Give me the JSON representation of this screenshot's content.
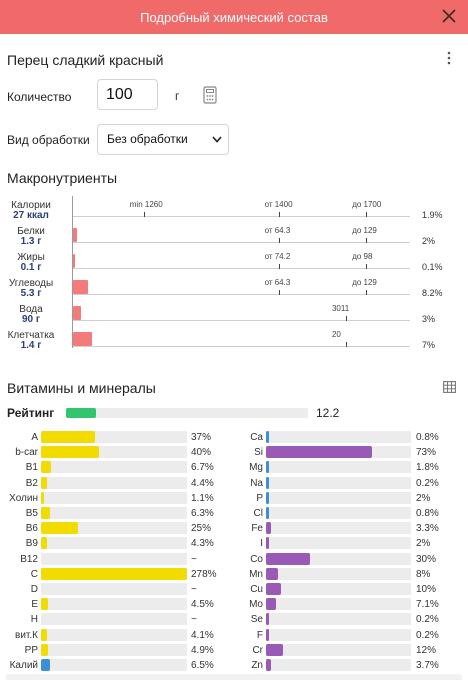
{
  "header": {
    "title": "Подробный химический состав"
  },
  "product": {
    "title": "Перец сладкий красный"
  },
  "quantity": {
    "label": "Количество",
    "value": "100",
    "unit": "г"
  },
  "processing": {
    "label": "Вид обработки",
    "selected": "Без обработки"
  },
  "macros": {
    "title": "Макронутриенты",
    "items": [
      {
        "name": "Калории",
        "amount": "27 ккал",
        "bar_pct": 0,
        "percent": "1.9%",
        "marks": [
          {
            "text": "min 1260",
            "tick_pct": 21
          },
          {
            "text": "от 1400",
            "tick_pct": 61
          },
          {
            "text": "до 1700",
            "tick_pct": 87
          }
        ]
      },
      {
        "name": "Белки",
        "amount": "1.3 г",
        "bar_pct": 1.2,
        "percent": "2%",
        "marks": [
          {
            "text": "от 64.3",
            "tick_pct": 61
          },
          {
            "text": "до 129",
            "tick_pct": 87
          }
        ]
      },
      {
        "name": "Жиры",
        "amount": "0.1 г",
        "bar_pct": 0.1,
        "percent": "0.1%",
        "marks": [
          {
            "text": "от 74.2",
            "tick_pct": 61
          },
          {
            "text": "до 98",
            "tick_pct": 87
          }
        ]
      },
      {
        "name": "Углеводы",
        "amount": "5.3 г",
        "bar_pct": 4.5,
        "percent": "8.2%",
        "marks": [
          {
            "text": "от 64.3",
            "tick_pct": 61
          },
          {
            "text": "до 129",
            "tick_pct": 87
          }
        ]
      },
      {
        "name": "Вода",
        "amount": "90 г",
        "bar_pct": 2.4,
        "percent": "3%",
        "marks": [
          {
            "text": "3011",
            "tick_pct": 81
          }
        ]
      },
      {
        "name": "Клетчатка",
        "amount": "1.4 г",
        "bar_pct": 5.5,
        "percent": "7%",
        "marks": [
          {
            "text": "20",
            "tick_pct": 81
          }
        ]
      }
    ]
  },
  "vitamins": {
    "title": "Витамины и минералы",
    "rating_label": "Рейтинг",
    "rating_value": "12.2",
    "rating_fill_pct": 12.2,
    "colors": {
      "vitamin": "#f2dc00",
      "mineral": "#9b59b6",
      "electrolyte": "#3b8fd6"
    },
    "left": [
      {
        "name": "A",
        "fill_pct": 37,
        "percent": "37%",
        "kind": "vitamin"
      },
      {
        "name": "b-car",
        "fill_pct": 40,
        "percent": "40%",
        "kind": "vitamin"
      },
      {
        "name": "B1",
        "fill_pct": 6.7,
        "percent": "6.7%",
        "kind": "vitamin"
      },
      {
        "name": "B2",
        "fill_pct": 4.4,
        "percent": "4.4%",
        "kind": "vitamin"
      },
      {
        "name": "Холин",
        "fill_pct": 1.1,
        "percent": "1.1%",
        "kind": "vitamin"
      },
      {
        "name": "B5",
        "fill_pct": 6.3,
        "percent": "6.3%",
        "kind": "vitamin"
      },
      {
        "name": "B6",
        "fill_pct": 25,
        "percent": "25%",
        "kind": "vitamin"
      },
      {
        "name": "B9",
        "fill_pct": 4.3,
        "percent": "4.3%",
        "kind": "vitamin"
      },
      {
        "name": "B12",
        "fill_pct": 0,
        "percent": "~",
        "kind": "vitamin"
      },
      {
        "name": "C",
        "fill_pct": 100,
        "percent": "278%",
        "kind": "vitamin"
      },
      {
        "name": "D",
        "fill_pct": 0,
        "percent": "~",
        "kind": "vitamin"
      },
      {
        "name": "E",
        "fill_pct": 4.5,
        "percent": "4.5%",
        "kind": "vitamin"
      },
      {
        "name": "H",
        "fill_pct": 0,
        "percent": "~",
        "kind": "vitamin"
      },
      {
        "name": "вит.К",
        "fill_pct": 4.1,
        "percent": "4.1%",
        "kind": "vitamin"
      },
      {
        "name": "PP",
        "fill_pct": 4.9,
        "percent": "4.9%",
        "kind": "vitamin"
      },
      {
        "name": "Калий",
        "fill_pct": 6.5,
        "percent": "6.5%",
        "kind": "electrolyte"
      }
    ],
    "right": [
      {
        "name": "Ca",
        "fill_pct": 0.8,
        "percent": "0.8%",
        "kind": "electrolyte"
      },
      {
        "name": "Si",
        "fill_pct": 73,
        "percent": "73%",
        "kind": "mineral"
      },
      {
        "name": "Mg",
        "fill_pct": 1.8,
        "percent": "1.8%",
        "kind": "electrolyte"
      },
      {
        "name": "Na",
        "fill_pct": 0.2,
        "percent": "0.2%",
        "kind": "electrolyte"
      },
      {
        "name": "P",
        "fill_pct": 2,
        "percent": "2%",
        "kind": "electrolyte"
      },
      {
        "name": "Cl",
        "fill_pct": 0.8,
        "percent": "0.8%",
        "kind": "electrolyte"
      },
      {
        "name": "Fe",
        "fill_pct": 3.3,
        "percent": "3.3%",
        "kind": "mineral"
      },
      {
        "name": "I",
        "fill_pct": 2,
        "percent": "2%",
        "kind": "mineral"
      },
      {
        "name": "Co",
        "fill_pct": 30,
        "percent": "30%",
        "kind": "mineral"
      },
      {
        "name": "Mn",
        "fill_pct": 8,
        "percent": "8%",
        "kind": "mineral"
      },
      {
        "name": "Cu",
        "fill_pct": 10,
        "percent": "10%",
        "kind": "mineral"
      },
      {
        "name": "Mo",
        "fill_pct": 7.1,
        "percent": "7.1%",
        "kind": "mineral"
      },
      {
        "name": "Se",
        "fill_pct": 0.2,
        "percent": "0.2%",
        "kind": "mineral"
      },
      {
        "name": "F",
        "fill_pct": 0.2,
        "percent": "0.2%",
        "kind": "mineral"
      },
      {
        "name": "Cr",
        "fill_pct": 12,
        "percent": "12%",
        "kind": "mineral"
      },
      {
        "name": "Zn",
        "fill_pct": 3.7,
        "percent": "3.7%",
        "kind": "mineral"
      }
    ]
  }
}
